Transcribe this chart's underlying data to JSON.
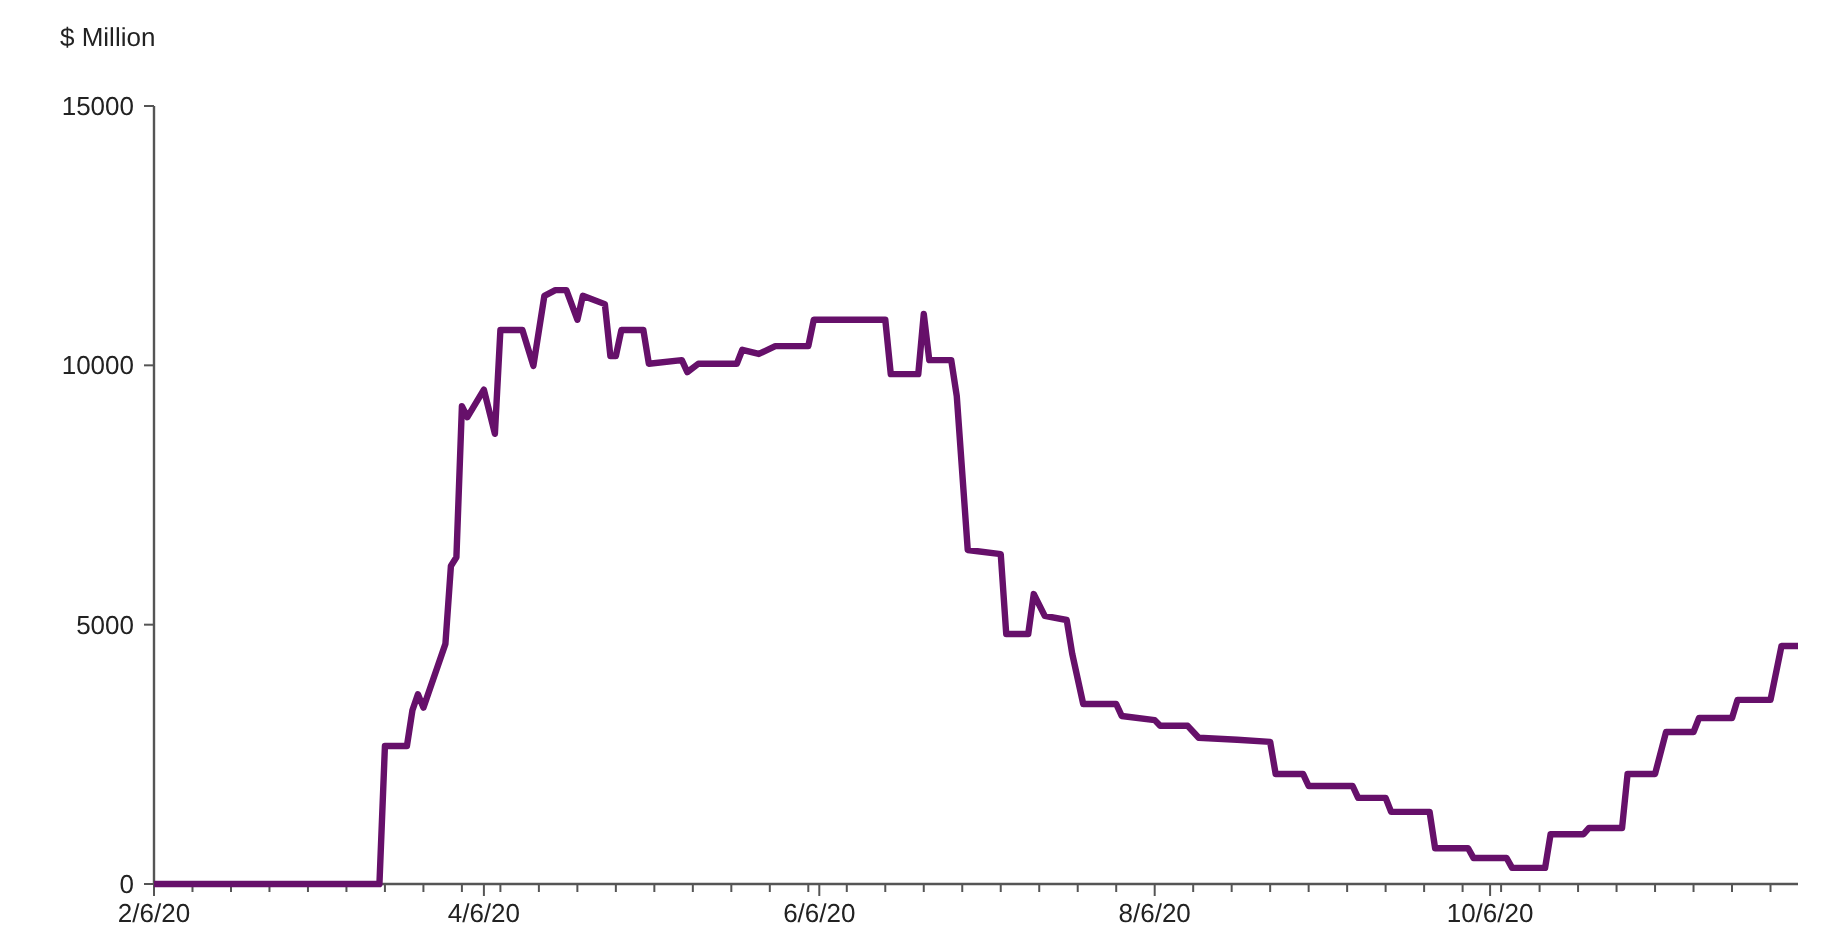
{
  "chart_data": {
    "type": "line",
    "ylabel": "$ Million",
    "line_style": "solid",
    "grid": false,
    "xlim": [
      "--02-06",
      "--12-01"
    ],
    "xticks": [
      {
        "value": "--02-06",
        "label": "2/6/20"
      },
      {
        "value": "--02-13",
        "label": null
      },
      {
        "value": "--02-20",
        "label": null
      },
      {
        "value": "--02-27",
        "label": null
      },
      {
        "value": "--03-05",
        "label": null
      },
      {
        "value": "--03-12",
        "label": null
      },
      {
        "value": "--03-19",
        "label": null
      },
      {
        "value": "--03-26",
        "label": null
      },
      {
        "value": "--04-02",
        "label": null
      },
      {
        "value": "--04-06",
        "label": "4/6/20"
      },
      {
        "value": "--04-09",
        "label": null
      },
      {
        "value": "--04-16",
        "label": null
      },
      {
        "value": "--04-23",
        "label": null
      },
      {
        "value": "--04-30",
        "label": null
      },
      {
        "value": "--05-07",
        "label": null
      },
      {
        "value": "--05-14",
        "label": null
      },
      {
        "value": "--05-21",
        "label": null
      },
      {
        "value": "--05-28",
        "label": null
      },
      {
        "value": "--06-04",
        "label": null
      },
      {
        "value": "--06-06",
        "label": "6/6/20"
      },
      {
        "value": "--06-11",
        "label": null
      },
      {
        "value": "--06-18",
        "label": null
      },
      {
        "value": "--06-25",
        "label": null
      },
      {
        "value": "--07-02",
        "label": null
      },
      {
        "value": "--07-09",
        "label": null
      },
      {
        "value": "--07-16",
        "label": null
      },
      {
        "value": "--07-23",
        "label": null
      },
      {
        "value": "--07-30",
        "label": null
      },
      {
        "value": "--08-06",
        "label": "8/6/20"
      },
      {
        "value": "--08-13",
        "label": null
      },
      {
        "value": "--08-20",
        "label": null
      },
      {
        "value": "--08-27",
        "label": null
      },
      {
        "value": "--09-03",
        "label": null
      },
      {
        "value": "--09-10",
        "label": null
      },
      {
        "value": "--09-17",
        "label": null
      },
      {
        "value": "--09-24",
        "label": null
      },
      {
        "value": "--10-01",
        "label": null
      },
      {
        "value": "--10-06",
        "label": "10/6/20"
      },
      {
        "value": "--10-08",
        "label": null
      },
      {
        "value": "--10-15",
        "label": null
      },
      {
        "value": "--10-22",
        "label": null
      },
      {
        "value": "--10-29",
        "label": null
      },
      {
        "value": "--11-05",
        "label": null
      },
      {
        "value": "--11-12",
        "label": null
      },
      {
        "value": "--11-19",
        "label": null
      },
      {
        "value": "--11-26",
        "label": null
      }
    ],
    "ylim": [
      0,
      15000
    ],
    "yticks": [
      0,
      5000,
      10000,
      15000
    ],
    "x": [
      "--02-06",
      "--03-18",
      "--03-19",
      "--03-23",
      "--03-24",
      "--03-25",
      "--03-26",
      "--03-30",
      "--03-31",
      "--04-01",
      "--04-02",
      "--04-03",
      "--04-06",
      "--04-08",
      "--04-09",
      "--04-13",
      "--04-15",
      "--04-17",
      "--04-19",
      "--04-21",
      "--04-23",
      "--04-24",
      "--04-28",
      "--04-29",
      "--04-30",
      "--05-01",
      "--05-05",
      "--05-06",
      "--05-12",
      "--05-13",
      "--05-15",
      "--05-22",
      "--05-23",
      "--05-26",
      "--05-29",
      "--06-04",
      "--06-05",
      "--06-18",
      "--06-19",
      "--06-24",
      "--06-25",
      "--06-26",
      "--06-30",
      "--07-01",
      "--07-03",
      "--07-09",
      "--07-10",
      "--07-14",
      "--07-15",
      "--07-17",
      "--07-21",
      "--07-22",
      "--07-24",
      "--07-30",
      "--07-31",
      "--08-06",
      "--08-07",
      "--08-12",
      "--08-14",
      "--08-21",
      "--08-27",
      "--08-28",
      "--09-02",
      "--09-03",
      "--09-11",
      "--09-12",
      "--09-17",
      "--09-18",
      "--09-25",
      "--09-26",
      "--10-02",
      "--10-03",
      "--10-09",
      "--10-10",
      "--10-16",
      "--10-17",
      "--10-23",
      "--10-24",
      "--10-30",
      "--10-31",
      "--11-05",
      "--11-07",
      "--11-12",
      "--11-13",
      "--11-19",
      "--11-20",
      "--11-26",
      "--11-28",
      "--12-01"
    ],
    "series": [
      {
        "color": "#66106a",
        "values": [
          0,
          0,
          2660,
          2660,
          3350,
          3660,
          3400,
          4630,
          6130,
          6300,
          9210,
          9000,
          9530,
          8680,
          10680,
          10680,
          9990,
          11340,
          11450,
          11450,
          10880,
          11340,
          11180,
          10180,
          10180,
          10680,
          10680,
          10030,
          10100,
          9870,
          10030,
          10030,
          10300,
          10220,
          10370,
          10370,
          10880,
          10880,
          9830,
          9830,
          10990,
          10100,
          10100,
          9410,
          6440,
          6360,
          4820,
          4820,
          5590,
          5170,
          5090,
          4440,
          3470,
          3470,
          3240,
          3160,
          3050,
          3050,
          2820,
          2780,
          2740,
          2120,
          2120,
          1890,
          1890,
          1660,
          1660,
          1390,
          1390,
          690,
          690,
          500,
          500,
          310,
          310,
          960,
          960,
          1080,
          1080,
          2120,
          2120,
          2930,
          2930,
          3200,
          3200,
          3550,
          3550,
          4590,
          4590
        ]
      }
    ]
  }
}
